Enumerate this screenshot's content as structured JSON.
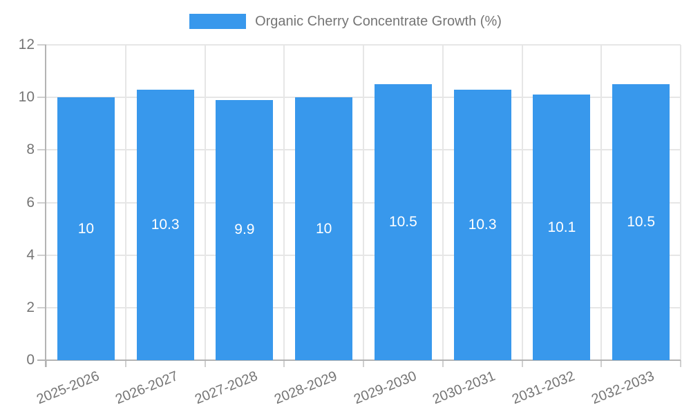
{
  "chart_data": {
    "type": "bar",
    "title": "Organic Cherry Concentrate Growth (%)",
    "categories": [
      "2025-2026",
      "2026-2027",
      "2027-2028",
      "2028-2029",
      "2029-2030",
      "2030-2031",
      "2031-2032",
      "2032-2033"
    ],
    "values": [
      10,
      10.3,
      9.9,
      10,
      10.5,
      10.3,
      10.1,
      10.5
    ],
    "value_labels": [
      "10",
      "10.3",
      "9.9",
      "10",
      "10.5",
      "10.3",
      "10.1",
      "10.5"
    ],
    "xlabel": "",
    "ylabel": "",
    "ylim": [
      0,
      12
    ],
    "yticks": [
      0,
      2,
      4,
      6,
      8,
      10,
      12
    ],
    "ytick_labels": [
      "0",
      "2",
      "4",
      "6",
      "8",
      "10",
      "12"
    ],
    "grid": "on",
    "legend_position": "top-center",
    "colors": {
      "bar": "#3898EC",
      "bar_value_label": "#FFFFFF",
      "axis_text": "#757575",
      "gridline": "#E6E6E6",
      "axis_line": "#B3B3B3"
    }
  }
}
